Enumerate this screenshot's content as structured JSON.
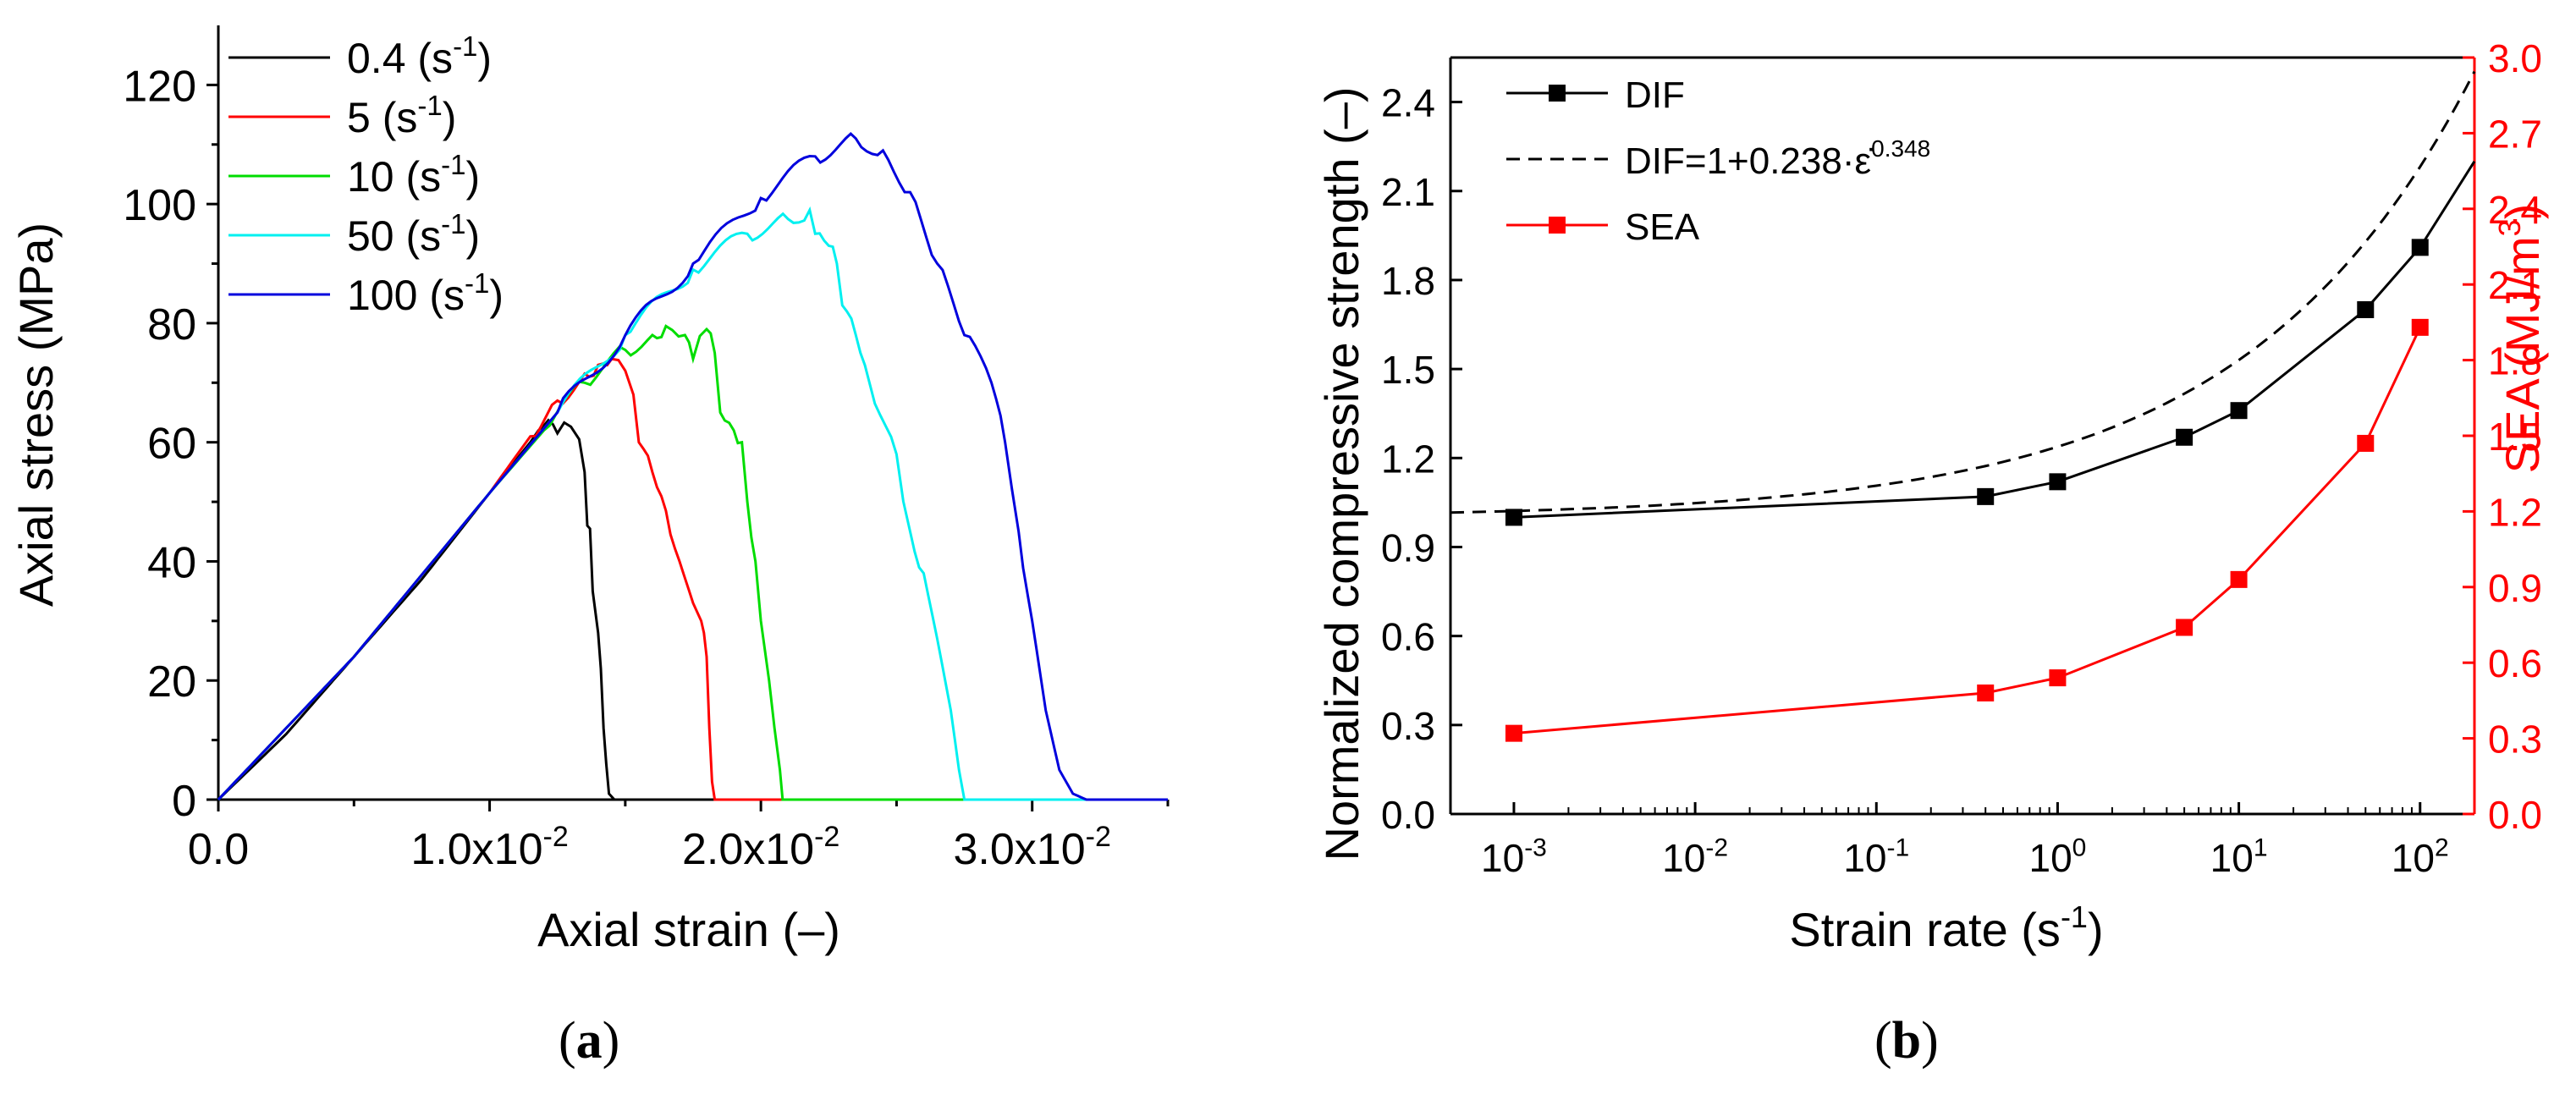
{
  "chart_data": [
    {
      "id": "a",
      "type": "line",
      "panel_label": "a",
      "xlabel": "Axial strain (–)",
      "ylabel": "Axial stress (MPa)",
      "xlim": [
        0,
        0.035
      ],
      "ylim": [
        0,
        130
      ],
      "x_ticks": [
        0,
        0.01,
        0.02,
        0.03
      ],
      "x_tick_labels": [
        {
          "mant": "0.0",
          "exp": ""
        },
        {
          "mant": "1.0x10",
          "exp": "-2"
        },
        {
          "mant": "2.0x10",
          "exp": "-2"
        },
        {
          "mant": "3.0x10",
          "exp": "-2"
        }
      ],
      "y_ticks": [
        0,
        20,
        40,
        60,
        80,
        100,
        120
      ],
      "y_tick_labels": [
        "0",
        "20",
        "40",
        "60",
        "80",
        "100",
        "120"
      ],
      "legend_position": "top-left",
      "series": [
        {
          "name": "0.4 (s",
          "exp": "-1",
          "suffix": ")",
          "color": "#000000",
          "points": [
            [
              0,
              0
            ],
            [
              0.0025,
              11
            ],
            [
              0.005,
              24
            ],
            [
              0.0075,
              37
            ],
            [
              0.01,
              51.5
            ],
            [
              0.0115,
              60
            ],
            [
              0.0118,
              62
            ],
            [
              0.012,
              62.8
            ],
            [
              0.0125,
              61.5
            ],
            [
              0.013,
              62.6
            ],
            [
              0.0133,
              60.5
            ],
            [
              0.0135,
              55
            ],
            [
              0.0136,
              46
            ],
            [
              0.0137,
              45.5
            ],
            [
              0.0138,
              35
            ],
            [
              0.014,
              28
            ],
            [
              0.0141,
              22
            ],
            [
              0.0142,
              12
            ],
            [
              0.0143,
              6
            ],
            [
              0.0144,
              1
            ],
            [
              0.0146,
              0
            ],
            [
              0.035,
              0
            ]
          ]
        },
        {
          "name": "5 (s",
          "exp": "-1",
          "suffix": ")",
          "color": "#ff0000",
          "points": [
            [
              0,
              0
            ],
            [
              0.005,
              24
            ],
            [
              0.01,
              51.5
            ],
            [
              0.0115,
              61
            ],
            [
              0.0125,
              67
            ],
            [
              0.0135,
              71.5
            ],
            [
              0.014,
              73
            ],
            [
              0.0145,
              74
            ],
            [
              0.015,
              72
            ],
            [
              0.0153,
              68
            ],
            [
              0.0155,
              60
            ],
            [
              0.016,
              55
            ],
            [
              0.0165,
              48.5
            ],
            [
              0.017,
              40
            ],
            [
              0.0175,
              33
            ],
            [
              0.0178,
              30
            ],
            [
              0.0179,
              28
            ],
            [
              0.018,
              24
            ],
            [
              0.0181,
              12
            ],
            [
              0.0182,
              3
            ],
            [
              0.0183,
              0
            ],
            [
              0.035,
              0
            ]
          ]
        },
        {
          "name": "10 (s",
          "exp": "-1",
          "suffix": ")",
          "color": "#00dd00",
          "points": [
            [
              0,
              0
            ],
            [
              0.005,
              24
            ],
            [
              0.01,
              51.5
            ],
            [
              0.012,
              62
            ],
            [
              0.0135,
              70
            ],
            [
              0.015,
              75.5
            ],
            [
              0.016,
              78
            ],
            [
              0.0165,
              79.5
            ],
            [
              0.0172,
              78
            ],
            [
              0.0175,
              74
            ],
            [
              0.018,
              79
            ],
            [
              0.0183,
              75
            ],
            [
              0.0185,
              65
            ],
            [
              0.019,
              62
            ],
            [
              0.0193,
              60
            ],
            [
              0.0195,
              50
            ],
            [
              0.0198,
              40
            ],
            [
              0.02,
              30
            ],
            [
              0.0203,
              20
            ],
            [
              0.0205,
              12
            ],
            [
              0.0207,
              5
            ],
            [
              0.0208,
              0
            ],
            [
              0.035,
              0
            ]
          ]
        },
        {
          "name": "50 (s",
          "exp": "-1",
          "suffix": ")",
          "color": "#00f0f0",
          "points": [
            [
              0,
              0
            ],
            [
              0.005,
              24
            ],
            [
              0.01,
              51.5
            ],
            [
              0.0125,
              65
            ],
            [
              0.015,
              78
            ],
            [
              0.0175,
              89
            ],
            [
              0.0195,
              95
            ],
            [
              0.021,
              97.5
            ],
            [
              0.0218,
              99
            ],
            [
              0.022,
              95
            ],
            [
              0.0225,
              93
            ],
            [
              0.0228,
              90
            ],
            [
              0.023,
              83
            ],
            [
              0.0235,
              78
            ],
            [
              0.024,
              70
            ],
            [
              0.025,
              58
            ],
            [
              0.0255,
              45
            ],
            [
              0.026,
              38
            ],
            [
              0.0265,
              27
            ],
            [
              0.027,
              15
            ],
            [
              0.0273,
              5
            ],
            [
              0.0275,
              0
            ],
            [
              0.035,
              0
            ]
          ]
        },
        {
          "name": "100 (s",
          "exp": "-1",
          "suffix": ")",
          "color": "#0000dd",
          "points": [
            [
              0,
              0
            ],
            [
              0.005,
              24
            ],
            [
              0.01,
              51.5
            ],
            [
              0.0125,
              65
            ],
            [
              0.015,
              78
            ],
            [
              0.0175,
              90
            ],
            [
              0.02,
              101
            ],
            [
              0.022,
              108
            ],
            [
              0.0235,
              111
            ],
            [
              0.0245,
              109
            ],
            [
              0.0255,
              102
            ],
            [
              0.0265,
              90
            ],
            [
              0.0275,
              78
            ],
            [
              0.0285,
              70
            ],
            [
              0.029,
              60
            ],
            [
              0.0295,
              45
            ],
            [
              0.03,
              30
            ],
            [
              0.0305,
              15
            ],
            [
              0.031,
              5
            ],
            [
              0.0315,
              1
            ],
            [
              0.032,
              0
            ],
            [
              0.035,
              0
            ]
          ]
        }
      ]
    },
    {
      "id": "b",
      "type": "line",
      "panel_label": "b",
      "xlabel": "Strain rate (s",
      "xlabel_exp": "-1",
      "xlabel_suffix": ")",
      "ylabel": "Normalized compressive strength (–)",
      "ylabel_right": "SEA (MJ/m",
      "ylabel_right_exp": "3",
      "ylabel_right_suffix": ")",
      "x_scale": "log",
      "xlim_log10": [
        -3.35,
        2.3
      ],
      "ylim": [
        0,
        2.55
      ],
      "ylim_right": [
        0,
        3.0
      ],
      "x_ticks_log10": [
        -3,
        -2,
        -1,
        0,
        1,
        2
      ],
      "x_tick_labels": [
        {
          "mant": "10",
          "exp": "-3"
        },
        {
          "mant": "10",
          "exp": "-2"
        },
        {
          "mant": "10",
          "exp": "-1"
        },
        {
          "mant": "10",
          "exp": "0"
        },
        {
          "mant": "10",
          "exp": "1"
        },
        {
          "mant": "10",
          "exp": "2"
        }
      ],
      "y_ticks": [
        0.0,
        0.3,
        0.6,
        0.9,
        1.2,
        1.5,
        1.8,
        2.1,
        2.4
      ],
      "y_tick_labels": [
        "0.0",
        "0.3",
        "0.6",
        "0.9",
        "1.2",
        "1.5",
        "1.8",
        "2.1",
        "2.4"
      ],
      "y_ticks_right": [
        0.0,
        0.3,
        0.6,
        0.9,
        1.2,
        1.5,
        1.8,
        2.1,
        2.4,
        2.7,
        3.0
      ],
      "y_tick_labels_right": [
        "0.0",
        "0.3",
        "0.6",
        "0.9",
        "1.2",
        "1.5",
        "1.8",
        "2.1",
        "2.4",
        "2.7",
        "3.0"
      ],
      "right_axis_color": "#ff0000",
      "legend_position": "top-left",
      "legend": [
        {
          "label": "DIF",
          "style": "solid-marker",
          "color": "#000000"
        },
        {
          "label": "DIF=1+0.238·ε̇",
          "exp": "0.348",
          "style": "dashed",
          "color": "#000000"
        },
        {
          "label": "SEA",
          "style": "solid-marker",
          "color": "#ff0000"
        }
      ],
      "series": [
        {
          "name": "DIF",
          "axis": "left",
          "color": "#000000",
          "x": [
            0.001,
            0.4,
            1,
            5,
            10,
            50,
            100
          ],
          "values": [
            1.0,
            1.07,
            1.12,
            1.27,
            1.36,
            1.7,
            1.91
          ],
          "line_extends_to_log10": 2.3,
          "line_end_value": 2.2
        },
        {
          "name": "DIF fit",
          "axis": "left",
          "color": "#000000",
          "dashed": true,
          "formula": "1+0.238*x^0.348"
        },
        {
          "name": "SEA",
          "axis": "right",
          "color": "#ff0000",
          "x": [
            0.001,
            0.4,
            1,
            5,
            10,
            50,
            100
          ],
          "values": [
            0.32,
            0.48,
            0.54,
            0.74,
            0.93,
            1.47,
            1.93
          ]
        }
      ]
    }
  ]
}
